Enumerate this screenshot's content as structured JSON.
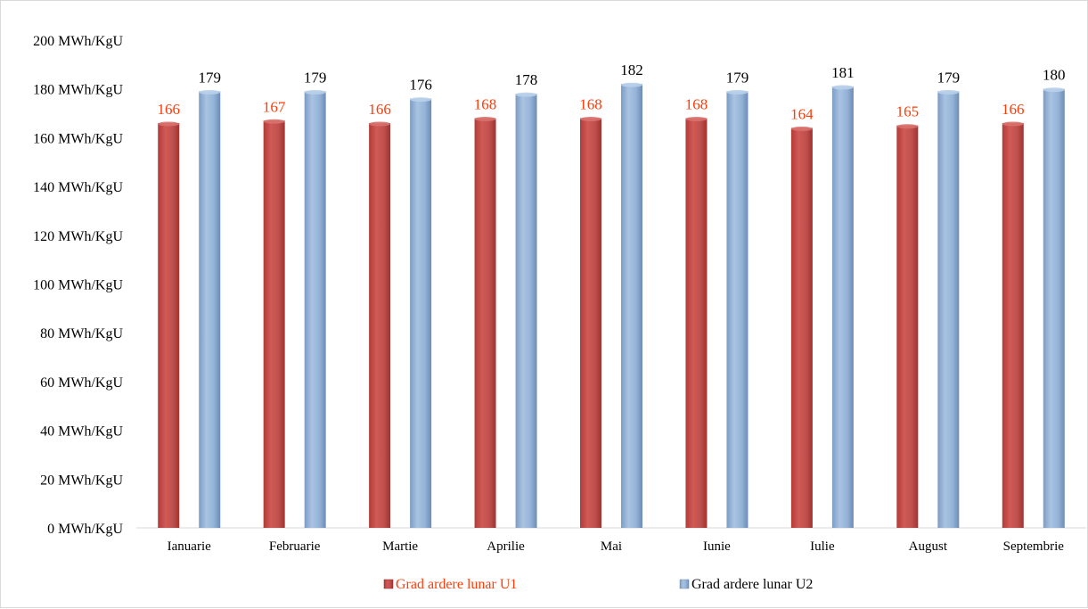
{
  "chart_data": {
    "type": "bar",
    "title": "",
    "xlabel": "",
    "ylabel": "",
    "ylim": [
      0,
      200
    ],
    "y_ticks": [
      0,
      20,
      40,
      60,
      80,
      100,
      120,
      140,
      160,
      180,
      200
    ],
    "y_tick_labels": [
      "0 MWh/KgU",
      "20 MWh/KgU",
      "40 MWh/KgU",
      "60 MWh/KgU",
      "80 MWh/KgU",
      "100 MWh/KgU",
      "120 MWh/KgU",
      "140 MWh/KgU",
      "160 MWh/KgU",
      "180 MWh/KgU",
      "200 MWh/KgU"
    ],
    "categories": [
      "Ianuarie",
      "Februarie",
      "Martie",
      "Aprilie",
      "Mai",
      "Iunie",
      "Iulie",
      "August",
      "Septembrie"
    ],
    "series": [
      {
        "name": "Grad ardere lunar U1",
        "values": [
          166,
          167,
          166,
          168,
          168,
          168,
          164,
          165,
          166
        ],
        "color": "#c0504d",
        "label_color": "#ff3c0a"
      },
      {
        "name": "Grad ardere lunar U2",
        "values": [
          179,
          179,
          176,
          178,
          182,
          179,
          181,
          179,
          180
        ],
        "color": "#95b3d7",
        "label_color": "#000000"
      }
    ],
    "grid": false,
    "legend": "bottom",
    "data_labels": true
  }
}
